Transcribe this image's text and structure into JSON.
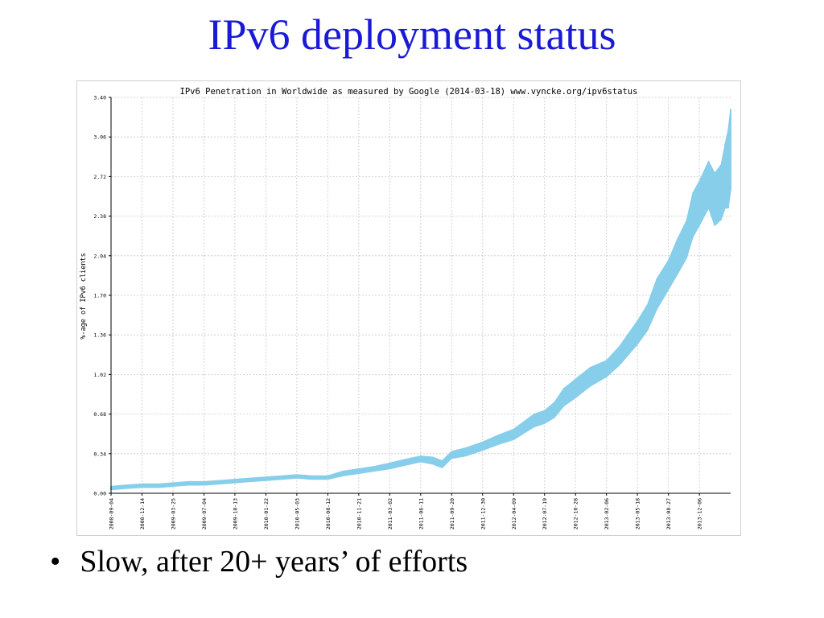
{
  "slide": {
    "title": "IPv6 deployment status",
    "bullet_marker": "•",
    "bullet_text": "Slow, after 20+ years’ of efforts"
  },
  "colors": {
    "title": "#1a1ad6",
    "series": "#87ceeb",
    "grid": "#c8c8c8",
    "axis": "#000000"
  },
  "chart_data": {
    "type": "area",
    "title": "IPv6 Penetration in Worldwide as measured by Google (2014-03-18) www.vyncke.org/ipv6status",
    "xlabel": "",
    "ylabel": "%-age of IPv6 clients",
    "ylim": [
      0,
      3.4
    ],
    "yticks": [
      "0.00",
      "0.34",
      "0.68",
      "1.02",
      "1.36",
      "1.70",
      "2.04",
      "2.38",
      "2.72",
      "3.06",
      "3.40"
    ],
    "xticks": [
      "2008-09-04",
      "2008-12-14",
      "2009-03-25",
      "2009-07-04",
      "2009-10-13",
      "2010-01-22",
      "2010-05-03",
      "2010-08-12",
      "2010-11-21",
      "2011-03-02",
      "2011-06-11",
      "2011-09-20",
      "2011-12-30",
      "2012-04-09",
      "2012-07-19",
      "2012-10-28",
      "2013-02-06",
      "2013-05-18",
      "2013-08-27",
      "2013-12-06"
    ],
    "xrange": [
      "2008-09-04",
      "2014-03-18"
    ],
    "grid": true,
    "series": [
      {
        "dates": [
          "2008-09-04",
          "2008-10-20",
          "2008-12-14",
          "2009-02-10",
          "2009-03-25",
          "2009-05-15",
          "2009-07-04",
          "2009-08-25",
          "2009-10-13",
          "2009-12-01",
          "2010-01-22",
          "2010-03-15",
          "2010-05-03",
          "2010-06-20",
          "2010-08-12",
          "2010-10-01",
          "2010-11-21",
          "2011-01-10",
          "2011-03-02",
          "2011-04-20",
          "2011-06-11",
          "2011-07-20",
          "2011-08-20",
          "2011-09-20",
          "2011-11-05",
          "2011-12-30",
          "2012-02-20",
          "2012-04-09",
          "2012-05-15",
          "2012-06-15",
          "2012-07-19",
          "2012-08-20",
          "2012-09-20",
          "2012-10-28",
          "2012-12-15",
          "2013-02-06",
          "2013-03-20",
          "2013-05-18",
          "2013-06-20",
          "2013-07-20",
          "2013-08-27",
          "2013-09-25",
          "2013-10-25",
          "2013-11-15",
          "2013-12-06",
          "2014-01-05",
          "2014-01-25",
          "2014-02-15",
          "2014-02-28",
          "2014-03-10",
          "2014-03-18"
        ],
        "low": [
          0.03,
          0.04,
          0.05,
          0.05,
          0.06,
          0.07,
          0.07,
          0.08,
          0.09,
          0.1,
          0.11,
          0.12,
          0.13,
          0.12,
          0.12,
          0.15,
          0.17,
          0.19,
          0.21,
          0.24,
          0.27,
          0.25,
          0.22,
          0.3,
          0.32,
          0.37,
          0.42,
          0.46,
          0.52,
          0.57,
          0.6,
          0.65,
          0.75,
          0.82,
          0.92,
          1.0,
          1.1,
          1.28,
          1.4,
          1.58,
          1.75,
          1.88,
          2.02,
          2.2,
          2.3,
          2.45,
          2.3,
          2.35,
          2.45,
          2.45,
          2.6
        ],
        "high": [
          0.06,
          0.07,
          0.08,
          0.08,
          0.09,
          0.1,
          0.1,
          0.11,
          0.12,
          0.13,
          0.14,
          0.15,
          0.16,
          0.15,
          0.15,
          0.19,
          0.21,
          0.23,
          0.26,
          0.29,
          0.32,
          0.31,
          0.28,
          0.36,
          0.39,
          0.44,
          0.5,
          0.55,
          0.62,
          0.68,
          0.71,
          0.78,
          0.9,
          0.98,
          1.08,
          1.14,
          1.26,
          1.48,
          1.62,
          1.84,
          2.0,
          2.18,
          2.34,
          2.58,
          2.68,
          2.85,
          2.75,
          2.82,
          3.0,
          3.12,
          3.3
        ]
      }
    ]
  }
}
